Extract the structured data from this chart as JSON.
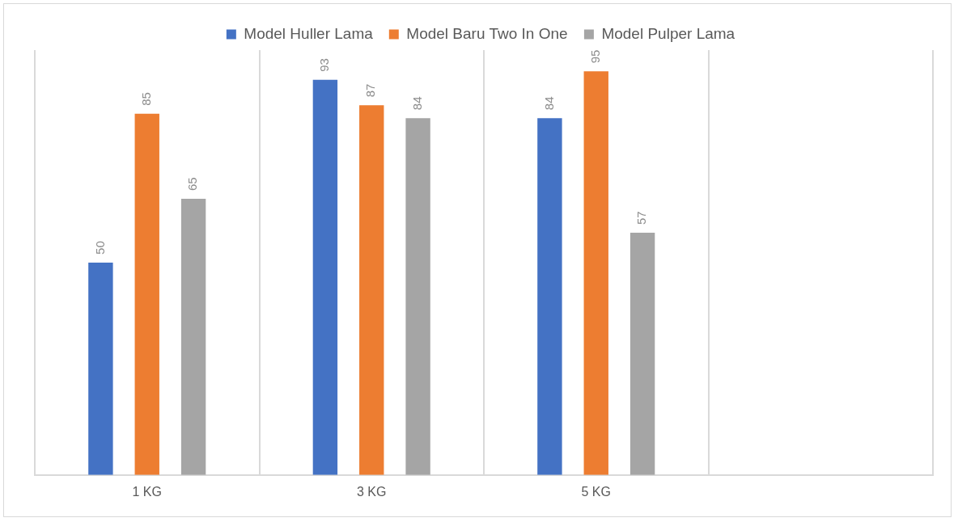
{
  "chart_data": {
    "type": "bar",
    "categories": [
      "1 KG",
      "3 KG",
      "5 KG",
      null
    ],
    "series": [
      {
        "name": "Model Huller Lama",
        "color": "#4472c4",
        "values": [
          50,
          93,
          84,
          null
        ]
      },
      {
        "name": "Model Baru Two In One",
        "color": "#ed7d31",
        "values": [
          85,
          87,
          95,
          null
        ]
      },
      {
        "name": "Model Pulper Lama",
        "color": "#a5a5a5",
        "values": [
          65,
          84,
          57,
          null
        ]
      }
    ],
    "ylim": [
      0,
      100
    ],
    "tick_labels": "x",
    "grid": "x",
    "legend": "top",
    "data_labels": true
  }
}
